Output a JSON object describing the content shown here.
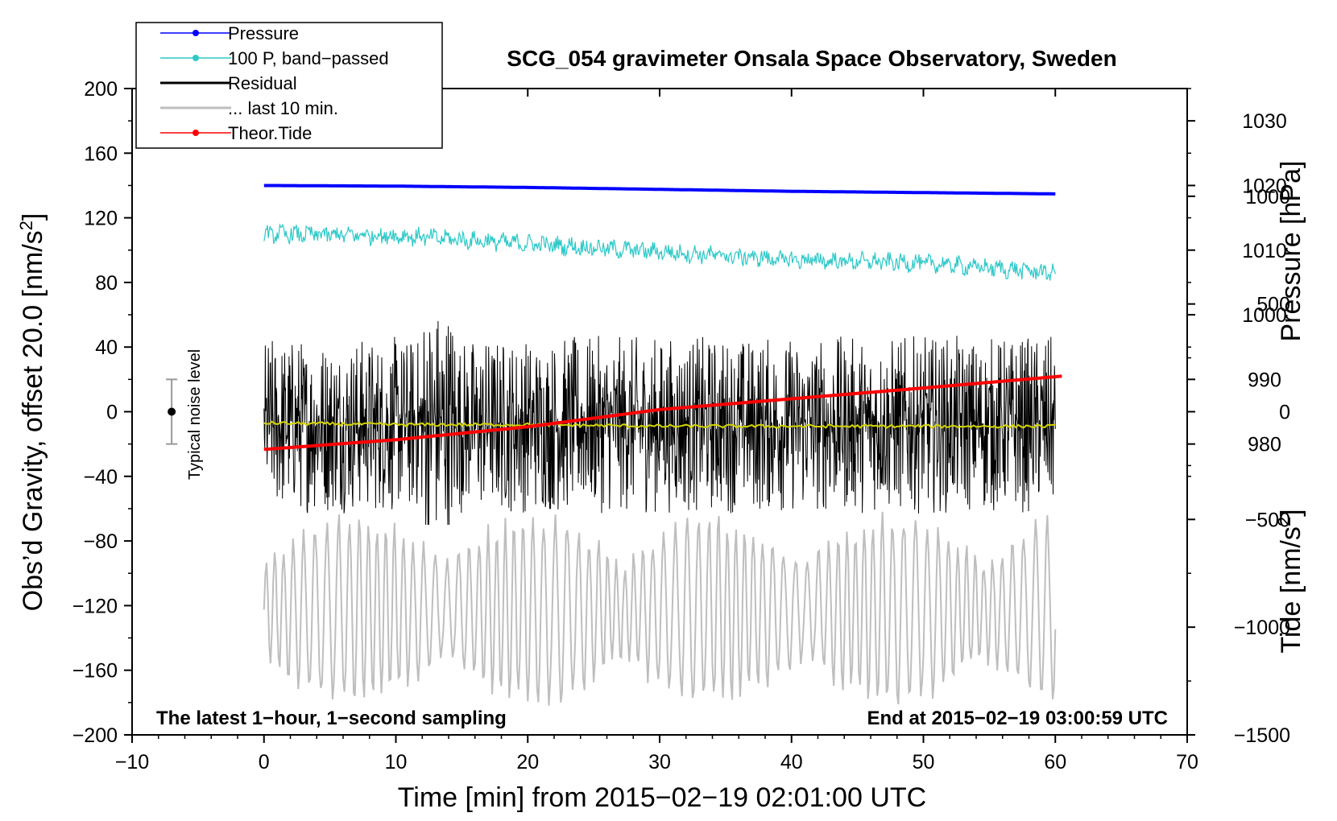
{
  "chart_data": {
    "type": "line",
    "title": "SCG_054 gravimeter Onsala Space Observatory, Sweden",
    "xlabel": "Time [min] from 2015−02−19 02:01:00 UTC",
    "ylabel": "Obs’d Gravity, offset 20.0 [nm/s",
    "ylabel_sup": "2",
    "ylabel_close": "]",
    "y2label": "Pressure [hPa]",
    "y3label": "Tide [nm/s",
    "y3label_sup": "2",
    "y3label_close": "]",
    "xlim": [
      -10,
      70
    ],
    "ylim": [
      -200,
      200
    ],
    "xticks": [
      -10,
      0,
      10,
      20,
      30,
      40,
      50,
      60,
      70
    ],
    "xtick_labels": [
      "−10",
      "0",
      "10",
      "20",
      "30",
      "40",
      "50",
      "60",
      "70"
    ],
    "yticks": [
      200,
      160,
      120,
      80,
      40,
      0,
      -40,
      -80,
      -120,
      -160,
      -200
    ],
    "ytick_labels": [
      "200",
      "160",
      "120",
      "80",
      "40",
      "0",
      "−40",
      "−80",
      "−120",
      "−160",
      "−200"
    ],
    "pressure_axis": {
      "ticks": [
        1030,
        1020,
        1010,
        1000,
        990,
        980
      ],
      "tick_labels": [
        "1030",
        "1020",
        "1010",
        "1000",
        "990",
        "980"
      ],
      "range": [
        935,
        1035
      ]
    },
    "tide_axis": {
      "ticks": [
        1000,
        500,
        0,
        -500,
        -1000,
        -1500
      ],
      "tick_labels": [
        "1000",
        "500",
        "0",
        "−500",
        "−1000",
        "−1500"
      ],
      "range": [
        -1500,
        1500
      ]
    },
    "annotations": {
      "bottom_left": "The latest 1−hour, 1−second sampling",
      "bottom_right": "End at 2015−02−19 03:00:59 UTC",
      "noise_label": "Typical noise level"
    },
    "noise_bar": {
      "x": -7,
      "center": 0,
      "low": -20,
      "high": 20
    },
    "legend": [
      {
        "label": "Pressure",
        "color": "#0000ff",
        "marker": true
      },
      {
        "label": "100 P, band−passed",
        "color": "#2ec8c8",
        "marker": true
      },
      {
        "label": "Residual",
        "color": "#000000",
        "marker": false
      },
      {
        "label": "... last 10 min.",
        "color": "#bebebe",
        "marker": false
      },
      {
        "label": "Theor.Tide",
        "color": "#ff0000",
        "marker": true
      }
    ],
    "series": [
      {
        "name": "Pressure",
        "color": "#0000ff",
        "x": [
          0,
          10,
          20,
          30,
          40,
          50,
          60
        ],
        "values": [
          1020.0,
          1019.9,
          1019.7,
          1019.4,
          1019.1,
          1018.9,
          1018.7
        ]
      },
      {
        "name": "100 P, band-passed",
        "color": "#2ec8c8",
        "x": [
          0,
          10,
          20,
          30,
          40,
          50,
          60
        ],
        "values": [
          110,
          109,
          104,
          99,
          94,
          92,
          86
        ]
      },
      {
        "name": "Residual",
        "color": "#000000",
        "x": [
          0,
          60
        ],
        "mean": -8,
        "range": [
          -70,
          65
        ]
      },
      {
        "name": "Residual mean",
        "color": "#d4d400",
        "x": [
          0,
          10,
          20,
          30,
          40,
          50,
          60
        ],
        "values": [
          -7,
          -8,
          -8,
          -9,
          -9,
          -9,
          -9
        ]
      },
      {
        "name": "... last 10 min.",
        "color": "#bebebe",
        "x": [
          0,
          60
        ],
        "range": [
          -185,
          -60
        ]
      },
      {
        "name": "Theor.Tide",
        "color": "#ff0000",
        "x": [
          0,
          10,
          20,
          30,
          40,
          50,
          60.5
        ],
        "values": [
          -175,
          -130,
          -70,
          10,
          60,
          110,
          165
        ]
      }
    ]
  }
}
